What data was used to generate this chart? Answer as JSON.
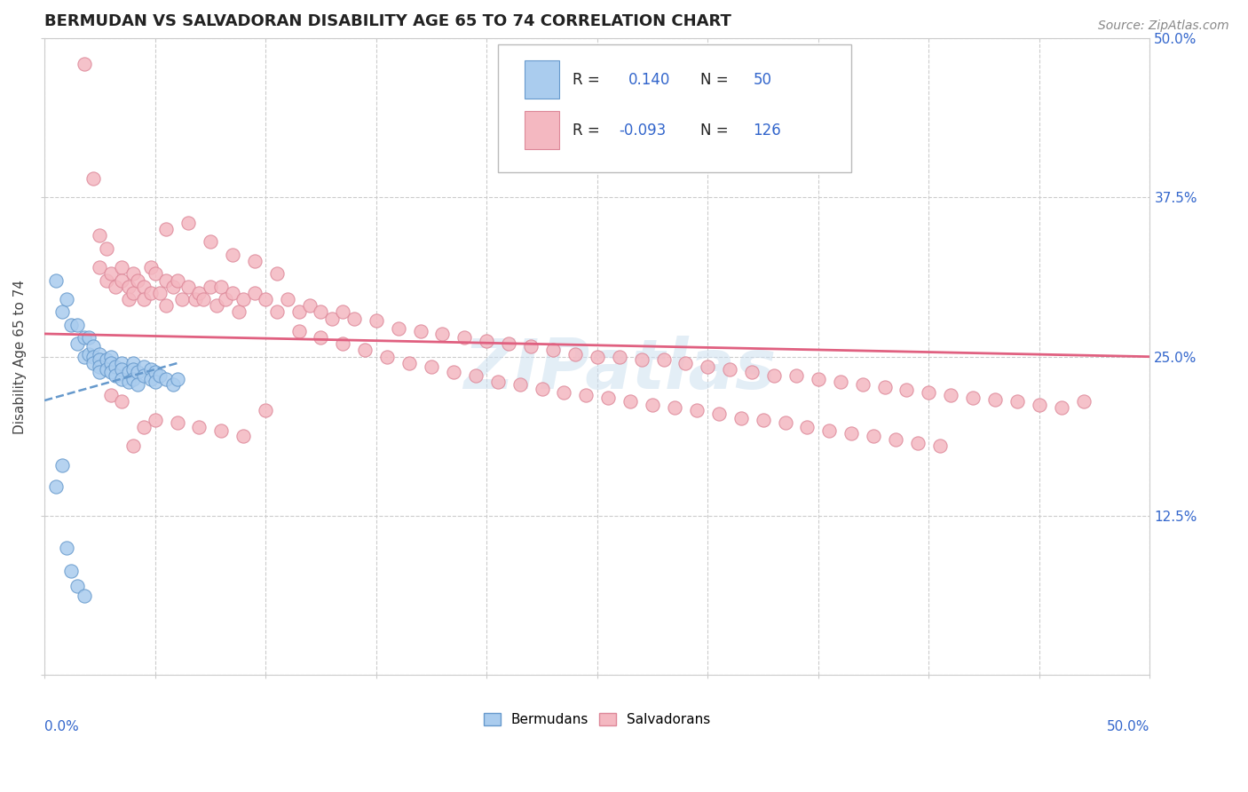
{
  "title": "BERMUDAN VS SALVADORAN DISABILITY AGE 65 TO 74 CORRELATION CHART",
  "source": "Source: ZipAtlas.com",
  "ylabel": "Disability Age 65 to 74",
  "xlim": [
    0.0,
    0.5
  ],
  "ylim": [
    0.0,
    0.5
  ],
  "bermudan_color": "#aaccee",
  "bermudan_edge": "#6699cc",
  "salvadoran_color": "#f4b8c1",
  "salvadoran_edge": "#dd8899",
  "trend_bermudan_color": "#6699cc",
  "trend_salvadoran_color": "#e06080",
  "watermark": "ZIPatlas",
  "R_berm": 0.14,
  "N_berm": 50,
  "R_salv": -0.093,
  "N_salv": 126,
  "bermudan_x": [
    0.005,
    0.008,
    0.01,
    0.012,
    0.015,
    0.015,
    0.018,
    0.018,
    0.02,
    0.02,
    0.022,
    0.022,
    0.022,
    0.025,
    0.025,
    0.025,
    0.025,
    0.028,
    0.028,
    0.03,
    0.03,
    0.03,
    0.032,
    0.032,
    0.035,
    0.035,
    0.035,
    0.038,
    0.038,
    0.04,
    0.04,
    0.04,
    0.042,
    0.042,
    0.045,
    0.045,
    0.048,
    0.048,
    0.05,
    0.05,
    0.052,
    0.055,
    0.058,
    0.06,
    0.005,
    0.008,
    0.01,
    0.012,
    0.015,
    0.018
  ],
  "bermudan_y": [
    0.31,
    0.285,
    0.295,
    0.275,
    0.275,
    0.26,
    0.265,
    0.25,
    0.265,
    0.252,
    0.258,
    0.25,
    0.245,
    0.252,
    0.248,
    0.242,
    0.238,
    0.248,
    0.24,
    0.25,
    0.245,
    0.238,
    0.242,
    0.235,
    0.245,
    0.24,
    0.232,
    0.238,
    0.23,
    0.245,
    0.24,
    0.232,
    0.238,
    0.228,
    0.242,
    0.235,
    0.24,
    0.232,
    0.238,
    0.23,
    0.235,
    0.232,
    0.228,
    0.232,
    0.148,
    0.165,
    0.1,
    0.082,
    0.07,
    0.062
  ],
  "salvadoran_x": [
    0.018,
    0.022,
    0.025,
    0.025,
    0.028,
    0.028,
    0.03,
    0.032,
    0.035,
    0.035,
    0.038,
    0.038,
    0.04,
    0.04,
    0.042,
    0.045,
    0.045,
    0.048,
    0.048,
    0.05,
    0.052,
    0.055,
    0.055,
    0.058,
    0.06,
    0.062,
    0.065,
    0.068,
    0.07,
    0.072,
    0.075,
    0.078,
    0.08,
    0.082,
    0.085,
    0.088,
    0.09,
    0.095,
    0.1,
    0.105,
    0.11,
    0.115,
    0.12,
    0.125,
    0.13,
    0.135,
    0.14,
    0.15,
    0.16,
    0.17,
    0.18,
    0.19,
    0.2,
    0.21,
    0.22,
    0.23,
    0.24,
    0.25,
    0.26,
    0.27,
    0.28,
    0.29,
    0.3,
    0.31,
    0.32,
    0.33,
    0.34,
    0.35,
    0.36,
    0.37,
    0.38,
    0.39,
    0.4,
    0.41,
    0.42,
    0.43,
    0.44,
    0.45,
    0.46,
    0.47,
    0.05,
    0.06,
    0.07,
    0.08,
    0.09,
    0.1,
    0.03,
    0.035,
    0.04,
    0.045,
    0.055,
    0.065,
    0.075,
    0.085,
    0.095,
    0.105,
    0.115,
    0.125,
    0.135,
    0.145,
    0.155,
    0.165,
    0.175,
    0.185,
    0.195,
    0.205,
    0.215,
    0.225,
    0.235,
    0.245,
    0.255,
    0.265,
    0.275,
    0.285,
    0.295,
    0.305,
    0.315,
    0.325,
    0.335,
    0.345,
    0.355,
    0.365,
    0.375,
    0.385,
    0.395,
    0.405
  ],
  "salvadoran_y": [
    0.48,
    0.39,
    0.345,
    0.32,
    0.335,
    0.31,
    0.315,
    0.305,
    0.32,
    0.31,
    0.305,
    0.295,
    0.315,
    0.3,
    0.31,
    0.305,
    0.295,
    0.32,
    0.3,
    0.315,
    0.3,
    0.31,
    0.29,
    0.305,
    0.31,
    0.295,
    0.305,
    0.295,
    0.3,
    0.295,
    0.305,
    0.29,
    0.305,
    0.295,
    0.3,
    0.285,
    0.295,
    0.3,
    0.295,
    0.285,
    0.295,
    0.285,
    0.29,
    0.285,
    0.28,
    0.285,
    0.28,
    0.278,
    0.272,
    0.27,
    0.268,
    0.265,
    0.262,
    0.26,
    0.258,
    0.255,
    0.252,
    0.25,
    0.25,
    0.248,
    0.248,
    0.245,
    0.242,
    0.24,
    0.238,
    0.235,
    0.235,
    0.232,
    0.23,
    0.228,
    0.226,
    0.224,
    0.222,
    0.22,
    0.218,
    0.216,
    0.215,
    0.212,
    0.21,
    0.215,
    0.2,
    0.198,
    0.195,
    0.192,
    0.188,
    0.208,
    0.22,
    0.215,
    0.18,
    0.195,
    0.35,
    0.355,
    0.34,
    0.33,
    0.325,
    0.315,
    0.27,
    0.265,
    0.26,
    0.255,
    0.25,
    0.245,
    0.242,
    0.238,
    0.235,
    0.23,
    0.228,
    0.225,
    0.222,
    0.22,
    0.218,
    0.215,
    0.212,
    0.21,
    0.208,
    0.205,
    0.202,
    0.2,
    0.198,
    0.195,
    0.192,
    0.19,
    0.188,
    0.185,
    0.182,
    0.18
  ]
}
